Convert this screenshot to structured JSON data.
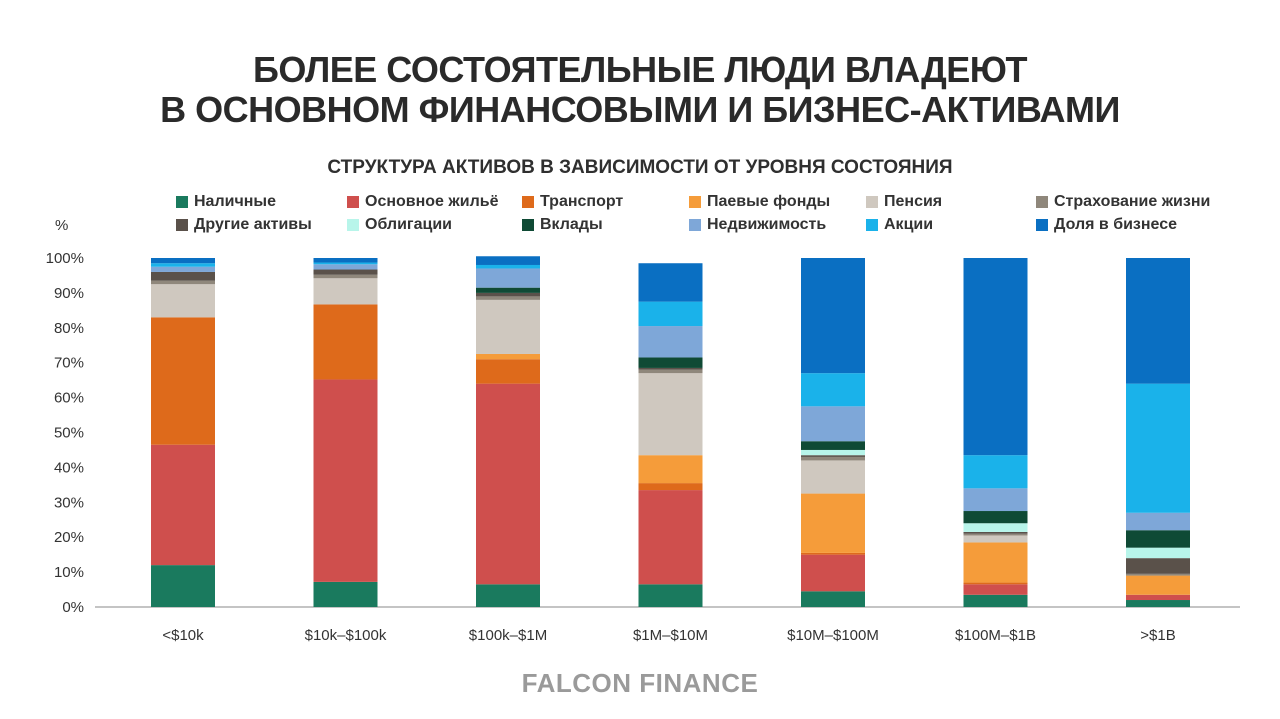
{
  "title_lines": [
    "БОЛЕЕ СОСТОЯТЕЛЬНЫЕ ЛЮДИ ВЛАДЕЮТ",
    "В ОСНОВНОМ ФИНАНСОВЫМИ И БИЗНЕС-АКТИВАМИ"
  ],
  "brand": "FALCON FINANCE",
  "chart_data": {
    "type": "bar",
    "stacked": true,
    "title": "СТРУКТУРА АКТИВОВ В ЗАВИСИМОСТИ ОТ УРОВНЯ СОСТОЯНИЯ",
    "ylabel": "%",
    "ylim": [
      0,
      100
    ],
    "yticks": [
      "0%",
      "10%",
      "20%",
      "30%",
      "40%",
      "50%",
      "60%",
      "70%",
      "80%",
      "90%",
      "100%"
    ],
    "grid": false,
    "legend_position": "top",
    "categories": [
      "<$10k",
      "$10k–$100k",
      "$100k–$1M",
      "$1M–$10M",
      "$10M–$100M",
      "$100M–$1B",
      ">$1B"
    ],
    "series": [
      {
        "name": "Наличные",
        "color": "#1a7a5e",
        "values": [
          12,
          7.2,
          6.5,
          6.5,
          4.5,
          3.5,
          2
        ]
      },
      {
        "name": "Основное жильё",
        "color": "#cf4f4d",
        "values": [
          34.5,
          58,
          57.5,
          27,
          10.5,
          3,
          1.5
        ]
      },
      {
        "name": "Транспорт",
        "color": "#de6a1b",
        "values": [
          36.5,
          21.5,
          7,
          2,
          0.5,
          0.5,
          0
        ]
      },
      {
        "name": "Паевые фонды",
        "color": "#f59c3a",
        "values": [
          0,
          0,
          1.5,
          8,
          17,
          11.5,
          5.5
        ]
      },
      {
        "name": "Пенсия",
        "color": "#cfc8bf",
        "values": [
          9.5,
          7.5,
          15.5,
          23.5,
          9.5,
          2,
          0
        ]
      },
      {
        "name": "Страхование жизни",
        "color": "#8f877b",
        "values": [
          1,
          1,
          1,
          1,
          1,
          0.5,
          0.5
        ]
      },
      {
        "name": "Другие активы",
        "color": "#5a514a",
        "values": [
          2.5,
          1.5,
          1,
          0.5,
          0.5,
          0.5,
          4.5
        ]
      },
      {
        "name": "Облигации",
        "color": "#b8f5ea",
        "values": [
          0,
          0,
          0,
          0,
          1.5,
          2.5,
          3
        ]
      },
      {
        "name": "Вклады",
        "color": "#0f4a35",
        "values": [
          0,
          0,
          1.5,
          3,
          2.5,
          3.5,
          5
        ]
      },
      {
        "name": "Недвижимость",
        "color": "#7ea7d8",
        "values": [
          1.5,
          1.5,
          5.5,
          9,
          10,
          6.5,
          5
        ]
      },
      {
        "name": "Акции",
        "color": "#1ab2ea",
        "values": [
          1,
          0.5,
          1,
          7,
          9.5,
          9.5,
          37
        ]
      },
      {
        "name": "Доля в бизнесе",
        "color": "#0a6fc2",
        "values": [
          1.5,
          1.3,
          2.5,
          11,
          33,
          56.5,
          36
        ]
      }
    ]
  }
}
